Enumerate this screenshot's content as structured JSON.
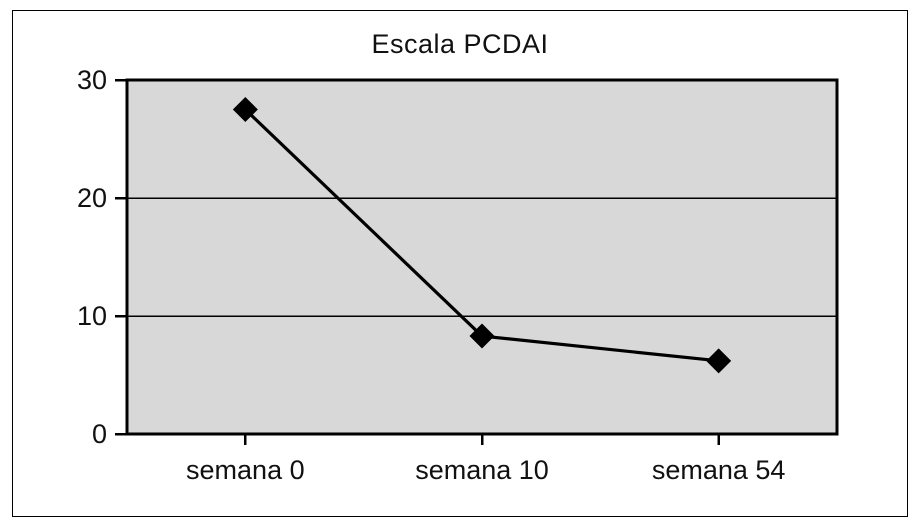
{
  "title": "Escala PCDAI",
  "chart_data": {
    "type": "line",
    "title": "Escala PCDAI",
    "categories": [
      "semana 0",
      "semana 10",
      "semana 54"
    ],
    "series": [
      {
        "name": "PCDAI",
        "values": [
          27.5,
          8.3,
          6.2
        ]
      }
    ],
    "xlabel": "",
    "ylabel": "",
    "ylim": [
      0,
      30
    ],
    "yticks": [
      0,
      10,
      20,
      30
    ],
    "grid": true,
    "legend_position": "none",
    "marker": "diamond",
    "colors": {
      "plot_background": "#d8d8d8",
      "line": "#000000",
      "marker": "#000000",
      "gridline": "#000000",
      "axis": "#000000",
      "frame_border": "#000000",
      "text": "#111111"
    }
  }
}
